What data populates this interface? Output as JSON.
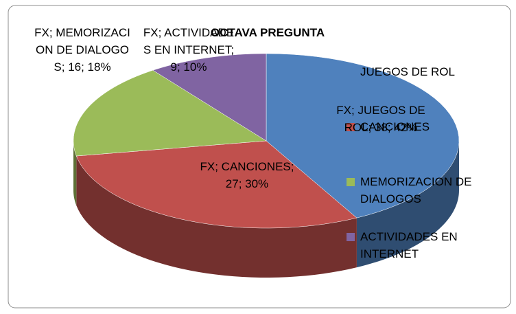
{
  "chart_data": {
    "type": "pie",
    "title": "OCTAVA PREGUNTA",
    "categories": [
      "JUEGOS DE ROL",
      "CANCIONES",
      "MEMORIZACION DE DIALOGOS",
      "ACTIVIDADES EN INTERNET"
    ],
    "values": [
      38,
      27,
      16,
      9
    ],
    "value_labels": [
      "FX; JUEGOS DE ROL; 38; 42%",
      "FX; CANCIONES; 27; 30%",
      "FX; MEMORIZACION DE DIALOGOS; 16; 18%",
      "FX; ACTIVIDADES EN INTERNET; 9; 10%"
    ],
    "colors": [
      "#4f81bd",
      "#c0504d",
      "#9bbb59",
      "#8064a2"
    ],
    "legend": "right"
  }
}
